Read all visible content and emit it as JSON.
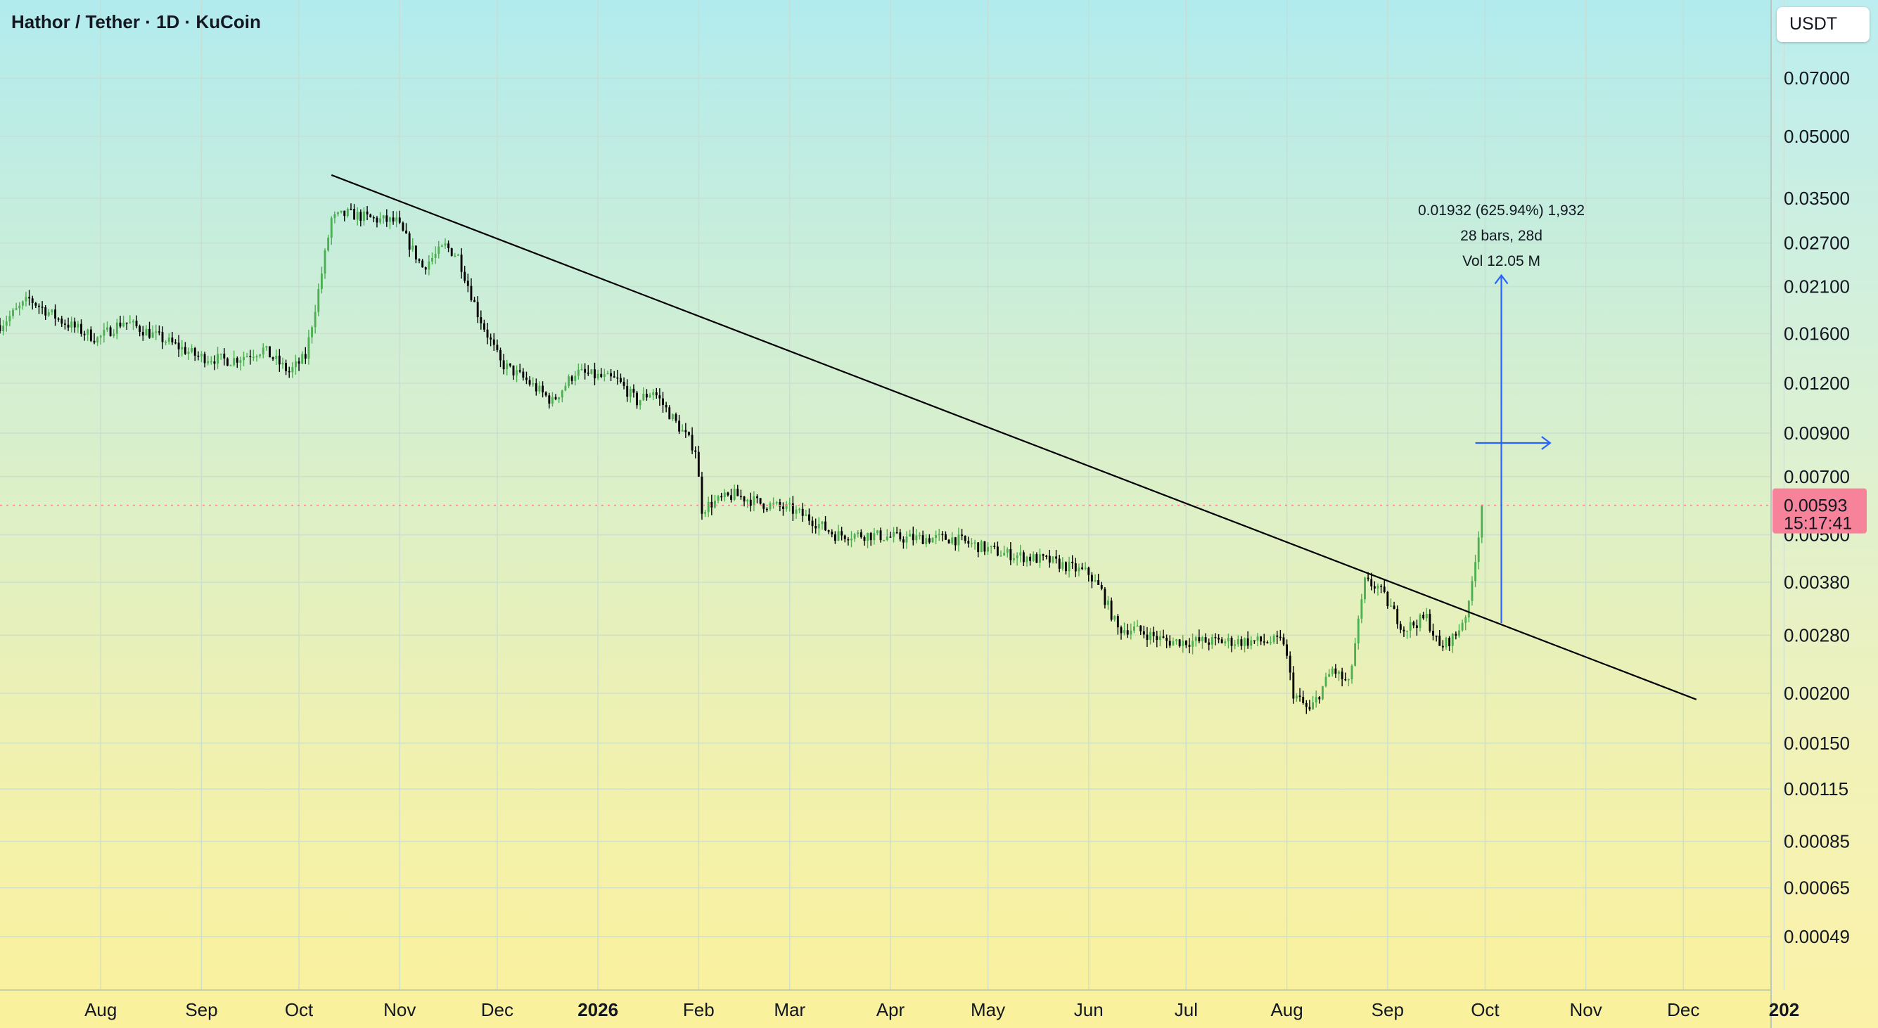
{
  "header": {
    "symbol_title": "Hathor / Tether · 1D · KuCoin",
    "currency_button": "USDT"
  },
  "colors": {
    "up": "#4caf50",
    "down": "#000000",
    "trendline": "#000000",
    "projection": "#2962ff",
    "price_tag": "#f7839a",
    "grid": "#c9dccf"
  },
  "current_price": {
    "value": 0.00593,
    "price_label": "0.00593",
    "countdown_label": "15:17:41"
  },
  "measure": {
    "line1": "0.01932 (625.94%) 1,932",
    "line2": "28 bars, 28d",
    "line3": "Vol 12.05 M"
  },
  "chart_data": {
    "type": "candlestick",
    "y_scale": "log",
    "ylim": [
      0.00036,
      0.11
    ],
    "xlim": [
      "2025-07-01",
      "2026-12-28"
    ],
    "grid": true,
    "y_ticks": [
      {
        "value": 0.07,
        "label": "0.07000"
      },
      {
        "value": 0.05,
        "label": "0.05000"
      },
      {
        "value": 0.035,
        "label": "0.03500"
      },
      {
        "value": 0.027,
        "label": "0.02700"
      },
      {
        "value": 0.021,
        "label": "0.02100"
      },
      {
        "value": 0.016,
        "label": "0.01600"
      },
      {
        "value": 0.012,
        "label": "0.01200"
      },
      {
        "value": 0.009,
        "label": "0.00900"
      },
      {
        "value": 0.007,
        "label": "0.00700"
      },
      {
        "value": 0.005,
        "label": "0.00500"
      },
      {
        "value": 0.0038,
        "label": "0.00380"
      },
      {
        "value": 0.0028,
        "label": "0.00280"
      },
      {
        "value": 0.002,
        "label": "0.00200"
      },
      {
        "value": 0.0015,
        "label": "0.00150"
      },
      {
        "value": 0.00115,
        "label": "0.00115"
      },
      {
        "value": 0.00085,
        "label": "0.00085"
      },
      {
        "value": 0.00065,
        "label": "0.00065"
      },
      {
        "value": 0.00049,
        "label": "0.00049"
      }
    ],
    "x_ticks": [
      {
        "date": "2025-08-01",
        "label": "Aug",
        "bold": false
      },
      {
        "date": "2025-09-01",
        "label": "Sep",
        "bold": false
      },
      {
        "date": "2025-10-01",
        "label": "Oct",
        "bold": false
      },
      {
        "date": "2025-11-01",
        "label": "Nov",
        "bold": false
      },
      {
        "date": "2025-12-01",
        "label": "Dec",
        "bold": false
      },
      {
        "date": "2026-01-01",
        "label": "2026",
        "bold": true
      },
      {
        "date": "2026-02-01",
        "label": "Feb",
        "bold": false
      },
      {
        "date": "2026-03-01",
        "label": "Mar",
        "bold": false
      },
      {
        "date": "2026-04-01",
        "label": "Apr",
        "bold": false
      },
      {
        "date": "2026-05-01",
        "label": "May",
        "bold": false
      },
      {
        "date": "2026-06-01",
        "label": "Jun",
        "bold": false
      },
      {
        "date": "2026-07-01",
        "label": "Jul",
        "bold": false
      },
      {
        "date": "2026-08-01",
        "label": "Aug",
        "bold": false
      },
      {
        "date": "2026-09-01",
        "label": "Sep",
        "bold": false
      },
      {
        "date": "2026-10-01",
        "label": "Oct",
        "bold": false
      },
      {
        "date": "2026-11-01",
        "label": "Nov",
        "bold": false
      },
      {
        "date": "2026-12-01",
        "label": "Dec",
        "bold": false
      },
      {
        "date": "2027-01-01",
        "label": "202",
        "bold": true
      }
    ],
    "price_path": [
      [
        "2025-07-01",
        0.0168
      ],
      [
        "2025-07-10",
        0.0195
      ],
      [
        "2025-07-20",
        0.0172
      ],
      [
        "2025-07-31",
        0.0155
      ],
      [
        "2025-08-08",
        0.0172
      ],
      [
        "2025-08-20",
        0.0155
      ],
      [
        "2025-08-31",
        0.014
      ],
      [
        "2025-09-10",
        0.0137
      ],
      [
        "2025-09-20",
        0.0146
      ],
      [
        "2025-09-28",
        0.0128
      ],
      [
        "2025-10-03",
        0.014
      ],
      [
        "2025-10-07",
        0.0205
      ],
      [
        "2025-10-11",
        0.031
      ],
      [
        "2025-10-16",
        0.032
      ],
      [
        "2025-10-24",
        0.031
      ],
      [
        "2025-10-31",
        0.0305
      ],
      [
        "2025-11-08",
        0.0235
      ],
      [
        "2025-11-15",
        0.0265
      ],
      [
        "2025-11-19",
        0.025
      ],
      [
        "2025-11-25",
        0.018
      ],
      [
        "2025-12-02",
        0.0135
      ],
      [
        "2025-12-10",
        0.0122
      ],
      [
        "2025-12-18",
        0.0108
      ],
      [
        "2025-12-25",
        0.0128
      ],
      [
        "2026-01-07",
        0.0122
      ],
      [
        "2026-01-13",
        0.0108
      ],
      [
        "2026-01-18",
        0.0115
      ],
      [
        "2026-01-24",
        0.0098
      ],
      [
        "2026-01-31",
        0.0082
      ],
      [
        "2026-02-02",
        0.0058
      ],
      [
        "2026-02-05",
        0.006
      ],
      [
        "2026-02-12",
        0.0063
      ],
      [
        "2026-02-20",
        0.006
      ],
      [
        "2026-03-01",
        0.0058
      ],
      [
        "2026-03-07",
        0.0055
      ],
      [
        "2026-03-15",
        0.005
      ],
      [
        "2026-03-25",
        0.005
      ],
      [
        "2026-04-05",
        0.0049
      ],
      [
        "2026-04-20",
        0.0049
      ],
      [
        "2026-05-05",
        0.0045
      ],
      [
        "2026-05-20",
        0.0043
      ],
      [
        "2026-06-01",
        0.004
      ],
      [
        "2026-06-05",
        0.0036
      ],
      [
        "2026-06-10",
        0.0029
      ],
      [
        "2026-06-15",
        0.0029
      ],
      [
        "2026-06-25",
        0.0027
      ],
      [
        "2026-07-10",
        0.0027
      ],
      [
        "2026-07-31",
        0.0027
      ],
      [
        "2026-08-03",
        0.002
      ],
      [
        "2026-08-08",
        0.0018
      ],
      [
        "2026-08-15",
        0.0023
      ],
      [
        "2026-08-20",
        0.0021
      ],
      [
        "2026-08-25",
        0.0038
      ],
      [
        "2026-08-29",
        0.0037
      ],
      [
        "2026-09-06",
        0.0029
      ],
      [
        "2026-09-13",
        0.0031
      ],
      [
        "2026-09-17",
        0.0026
      ],
      [
        "2026-09-22",
        0.0028
      ],
      [
        "2026-09-26",
        0.0033
      ],
      [
        "2026-09-28",
        0.0044
      ],
      [
        "2026-09-29",
        0.005
      ],
      [
        "2026-09-30",
        0.00593
      ]
    ],
    "trendline": {
      "from": [
        "2025-10-11",
        0.04
      ],
      "to": [
        "2026-12-05",
        0.00193
      ]
    },
    "projection": {
      "vertical": {
        "date": "2026-10-06",
        "from": 0.003,
        "to": 0.0224
      },
      "horizontal": {
        "price": 0.0085,
        "from": "2026-09-28",
        "to": "2026-10-21"
      }
    }
  }
}
